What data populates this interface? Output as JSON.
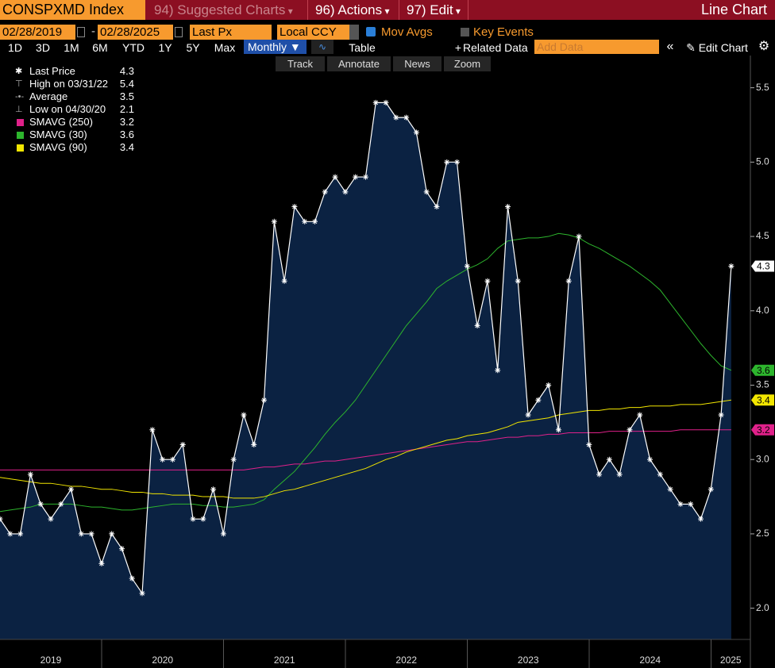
{
  "header": {
    "ticker": "CONSPXMD Index",
    "menus": [
      "94) Suggested Charts",
      "96) Actions",
      "97) Edit"
    ],
    "chart_type_label": "Line Chart"
  },
  "controls": {
    "start_date": "02/28/2019",
    "date_separator": "-",
    "end_date": "02/28/2025",
    "field": "Last Px",
    "currency": "Local CCY",
    "mov_avgs": "Mov Avgs",
    "key_events": "Key Events",
    "periods": [
      "1D",
      "3D",
      "1M",
      "6M",
      "YTD",
      "1Y",
      "5Y",
      "Max"
    ],
    "frequency": "Monthly",
    "table": "Table",
    "related_data": "Related Data",
    "add_data": "Add Data",
    "edit_chart": "Edit Chart",
    "tools": [
      "Track",
      "Annotate",
      "News",
      "Zoom"
    ]
  },
  "chart_data": {
    "type": "line",
    "area_color": "#0b2242",
    "x_tick_labels": [
      "2019",
      "2020",
      "2021",
      "2022",
      "2023",
      "2024",
      "2025"
    ],
    "ylim": [
      1.79,
      5.69
    ],
    "yticks": [
      {
        "value": 2,
        "label": "2.0"
      },
      2.5,
      {
        "value": 3,
        "label": "3.0"
      },
      3.5,
      {
        "value": 4,
        "label": "4.0"
      },
      4.5,
      {
        "value": 5,
        "label": "5.0"
      },
      5.5
    ],
    "grid": false,
    "series": [
      {
        "name": "Last Price",
        "color": "#ffffff",
        "legend_value": 4.3,
        "values": [
          2.6,
          2.5,
          2.5,
          2.9,
          2.7,
          2.6,
          2.7,
          2.8,
          2.5,
          2.5,
          2.3,
          2.5,
          2.4,
          2.2,
          2.1,
          3.2,
          3.0,
          3.0,
          3.1,
          2.6,
          2.6,
          2.8,
          2.5,
          3.0,
          3.3,
          3.1,
          3.4,
          4.6,
          4.2,
          4.7,
          4.6,
          4.6,
          4.8,
          4.9,
          4.8,
          4.9,
          4.9,
          5.4,
          5.4,
          5.3,
          5.3,
          5.2,
          4.8,
          4.7,
          5.0,
          5.0,
          4.3,
          3.9,
          4.2,
          3.6,
          4.7,
          4.2,
          3.3,
          3.4,
          3.5,
          3.2,
          4.2,
          4.5,
          3.1,
          2.9,
          3.0,
          2.9,
          3.2,
          3.3,
          3.0,
          2.9,
          2.8,
          2.7,
          2.7,
          2.6,
          2.8,
          3.3,
          4.3
        ]
      },
      {
        "name": "SMAVG (250)",
        "color": "#e0218a",
        "legend_value": 3.2,
        "values": [
          2.93,
          2.93,
          2.93,
          2.93,
          2.93,
          2.93,
          2.93,
          2.93,
          2.93,
          2.93,
          2.93,
          2.93,
          2.93,
          2.93,
          2.93,
          2.93,
          2.93,
          2.93,
          2.93,
          2.93,
          2.93,
          2.93,
          2.93,
          2.93,
          2.93,
          2.94,
          2.95,
          2.95,
          2.96,
          2.97,
          2.97,
          2.98,
          2.99,
          2.99,
          3.0,
          3.01,
          3.02,
          3.03,
          3.04,
          3.05,
          3.06,
          3.07,
          3.08,
          3.09,
          3.1,
          3.11,
          3.12,
          3.12,
          3.13,
          3.14,
          3.15,
          3.15,
          3.16,
          3.16,
          3.17,
          3.17,
          3.18,
          3.18,
          3.18,
          3.18,
          3.19,
          3.19,
          3.19,
          3.19,
          3.19,
          3.19,
          3.19,
          3.2,
          3.2,
          3.2,
          3.2,
          3.2,
          3.2
        ]
      },
      {
        "name": "SMAVG (30)",
        "color": "#2db52d",
        "legend_value": 3.6,
        "values": [
          2.65,
          2.66,
          2.67,
          2.68,
          2.7,
          2.7,
          2.7,
          2.7,
          2.69,
          2.68,
          2.68,
          2.67,
          2.66,
          2.66,
          2.67,
          2.68,
          2.69,
          2.7,
          2.7,
          2.7,
          2.69,
          2.69,
          2.68,
          2.68,
          2.69,
          2.7,
          2.73,
          2.8,
          2.86,
          2.92,
          3.0,
          3.08,
          3.17,
          3.25,
          3.32,
          3.4,
          3.5,
          3.6,
          3.7,
          3.8,
          3.9,
          3.98,
          4.06,
          4.15,
          4.2,
          4.24,
          4.28,
          4.31,
          4.35,
          4.42,
          4.47,
          4.48,
          4.49,
          4.49,
          4.5,
          4.52,
          4.51,
          4.49,
          4.45,
          4.42,
          4.38,
          4.34,
          4.3,
          4.25,
          4.2,
          4.14,
          4.05,
          3.96,
          3.87,
          3.78,
          3.7,
          3.63,
          3.6
        ]
      },
      {
        "name": "SMAVG (90)",
        "color": "#f2e600",
        "legend_value": 3.4,
        "values": [
          2.88,
          2.87,
          2.86,
          2.85,
          2.84,
          2.84,
          2.83,
          2.82,
          2.82,
          2.81,
          2.8,
          2.8,
          2.79,
          2.78,
          2.78,
          2.77,
          2.77,
          2.76,
          2.76,
          2.76,
          2.75,
          2.75,
          2.75,
          2.74,
          2.74,
          2.74,
          2.75,
          2.77,
          2.79,
          2.8,
          2.82,
          2.84,
          2.86,
          2.88,
          2.9,
          2.92,
          2.94,
          2.97,
          3.0,
          3.02,
          3.05,
          3.07,
          3.09,
          3.11,
          3.13,
          3.14,
          3.16,
          3.17,
          3.18,
          3.2,
          3.22,
          3.25,
          3.26,
          3.27,
          3.28,
          3.3,
          3.31,
          3.32,
          3.33,
          3.33,
          3.34,
          3.34,
          3.35,
          3.35,
          3.36,
          3.36,
          3.36,
          3.37,
          3.37,
          3.37,
          3.38,
          3.39,
          3.4
        ]
      }
    ],
    "stats": [
      {
        "name": "High on 03/31/22",
        "value": 5.4
      },
      {
        "name": "Average",
        "value": 3.5
      },
      {
        "name": "Low on 04/30/20",
        "value": 2.1
      }
    ]
  }
}
